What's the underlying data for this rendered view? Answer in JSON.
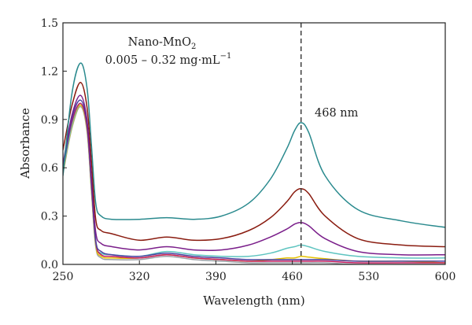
{
  "chart_data": {
    "type": "line",
    "title": "",
    "xlabel": "Wavelength (nm)",
    "ylabel": "Absorbance",
    "xlim": [
      250,
      600
    ],
    "ylim": [
      0,
      1.5
    ],
    "xticks": [
      250,
      320,
      390,
      460,
      530,
      600
    ],
    "yticks": [
      0.0,
      0.3,
      0.6,
      0.9,
      1.2,
      1.5
    ],
    "xtick_labels": [
      "250",
      "320",
      "390",
      "460",
      "530",
      "600"
    ],
    "ytick_labels": [
      "0.0",
      "0.3",
      "0.6",
      "0.9",
      "1.2",
      "1.5"
    ],
    "grid": false,
    "annotations": {
      "sample_main": "Nano-MnO",
      "sample_sub": "2",
      "concentration_main": "0.005 – 0.32 mg·mL",
      "concentration_sup": "−1",
      "peak_label": "468 nm",
      "peak_x": 468
    },
    "series": [
      {
        "color": "#2a8a8e",
        "x": [
          250,
          258,
          266,
          272,
          276,
          280,
          285,
          295,
          320,
          345,
          370,
          395,
          420,
          440,
          455,
          462,
          468,
          475,
          490,
          520,
          560,
          600
        ],
        "y": [
          0.55,
          1.05,
          1.25,
          1.1,
          0.75,
          0.38,
          0.3,
          0.28,
          0.28,
          0.29,
          0.28,
          0.3,
          0.38,
          0.53,
          0.72,
          0.83,
          0.88,
          0.82,
          0.55,
          0.34,
          0.27,
          0.23
        ]
      },
      {
        "color": "#8a1c10",
        "x": [
          250,
          258,
          266,
          272,
          276,
          280,
          285,
          295,
          320,
          345,
          370,
          395,
          420,
          440,
          455,
          462,
          468,
          475,
          490,
          520,
          560,
          600
        ],
        "y": [
          0.71,
          0.98,
          1.13,
          0.98,
          0.65,
          0.28,
          0.21,
          0.19,
          0.15,
          0.17,
          0.15,
          0.16,
          0.21,
          0.29,
          0.39,
          0.45,
          0.47,
          0.44,
          0.3,
          0.16,
          0.12,
          0.11
        ]
      },
      {
        "color": "#7a1e8a",
        "x": [
          250,
          258,
          266,
          272,
          276,
          280,
          285,
          295,
          320,
          345,
          370,
          395,
          420,
          440,
          455,
          462,
          468,
          475,
          490,
          520,
          560,
          600
        ],
        "y": [
          0.62,
          0.92,
          1.05,
          0.9,
          0.55,
          0.2,
          0.13,
          0.11,
          0.09,
          0.11,
          0.09,
          0.09,
          0.12,
          0.17,
          0.22,
          0.25,
          0.26,
          0.24,
          0.16,
          0.08,
          0.06,
          0.06
        ]
      },
      {
        "color": "#4b3fa0",
        "x": [
          250,
          258,
          266,
          272,
          276,
          280,
          285,
          295,
          320,
          345,
          370,
          395,
          420,
          440,
          455,
          462,
          468,
          475,
          490,
          520,
          560,
          600
        ],
        "y": [
          0.58,
          0.9,
          1.02,
          0.88,
          0.52,
          0.15,
          0.08,
          0.06,
          0.05,
          0.07,
          0.05,
          0.04,
          0.03,
          0.03,
          0.03,
          0.03,
          0.03,
          0.03,
          0.03,
          0.02,
          0.02,
          0.02
        ]
      },
      {
        "color": "#c2185b",
        "x": [
          250,
          258,
          266,
          272,
          276,
          280,
          285,
          295,
          320,
          345,
          370,
          395,
          420,
          440,
          455,
          462,
          468,
          475,
          490,
          520,
          560,
          600
        ],
        "y": [
          0.6,
          0.88,
          1.0,
          0.86,
          0.5,
          0.14,
          0.06,
          0.05,
          0.04,
          0.06,
          0.04,
          0.03,
          0.02,
          0.02,
          0.02,
          0.02,
          0.02,
          0.02,
          0.02,
          0.01,
          0.01,
          0.01
        ]
      },
      {
        "color": "#5ec4c0",
        "x": [
          250,
          258,
          266,
          272,
          276,
          280,
          285,
          295,
          320,
          345,
          370,
          395,
          420,
          440,
          455,
          462,
          468,
          475,
          490,
          520,
          560,
          600
        ],
        "y": [
          0.58,
          0.86,
          1.0,
          0.85,
          0.48,
          0.13,
          0.07,
          0.06,
          0.05,
          0.08,
          0.06,
          0.05,
          0.05,
          0.07,
          0.1,
          0.11,
          0.12,
          0.11,
          0.08,
          0.05,
          0.04,
          0.04
        ]
      },
      {
        "color": "#e6c200",
        "x": [
          250,
          258,
          266,
          272,
          276,
          280,
          285,
          295,
          320,
          345,
          370,
          395,
          420,
          440,
          455,
          462,
          468,
          475,
          490,
          520,
          560,
          600
        ],
        "y": [
          0.57,
          0.85,
          0.99,
          0.84,
          0.47,
          0.12,
          0.05,
          0.04,
          0.04,
          0.06,
          0.04,
          0.03,
          0.02,
          0.03,
          0.04,
          0.04,
          0.05,
          0.045,
          0.035,
          0.02,
          0.02,
          0.01
        ]
      },
      {
        "color": "#9aa0a6",
        "x": [
          250,
          258,
          266,
          272,
          276,
          280,
          285,
          295,
          320,
          345,
          370,
          395,
          420,
          440,
          455,
          462,
          468,
          475,
          490,
          520,
          560,
          600
        ],
        "y": [
          0.56,
          0.84,
          0.98,
          0.83,
          0.46,
          0.11,
          0.04,
          0.03,
          0.03,
          0.05,
          0.03,
          0.02,
          0.01,
          0.01,
          0.01,
          0.01,
          0.01,
          0.01,
          0.01,
          0.0,
          0.0,
          0.0
        ]
      }
    ]
  }
}
